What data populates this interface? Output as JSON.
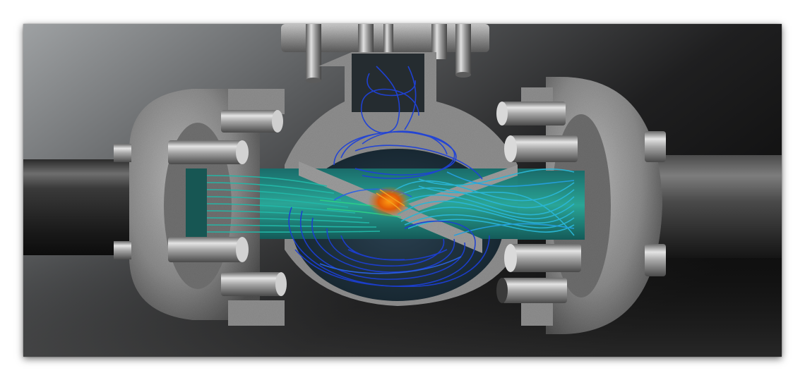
{
  "image": {
    "subject": "valve-flow-simulation",
    "colors": {
      "background_light": "#8a8c8e",
      "background_dark": "#121212",
      "metal": "#9a9a9a",
      "flow_blue": "#1535c8",
      "flow_cyan": "#1fb3c8",
      "flow_green": "#3cc870",
      "flow_orange": "#e87a10"
    }
  }
}
